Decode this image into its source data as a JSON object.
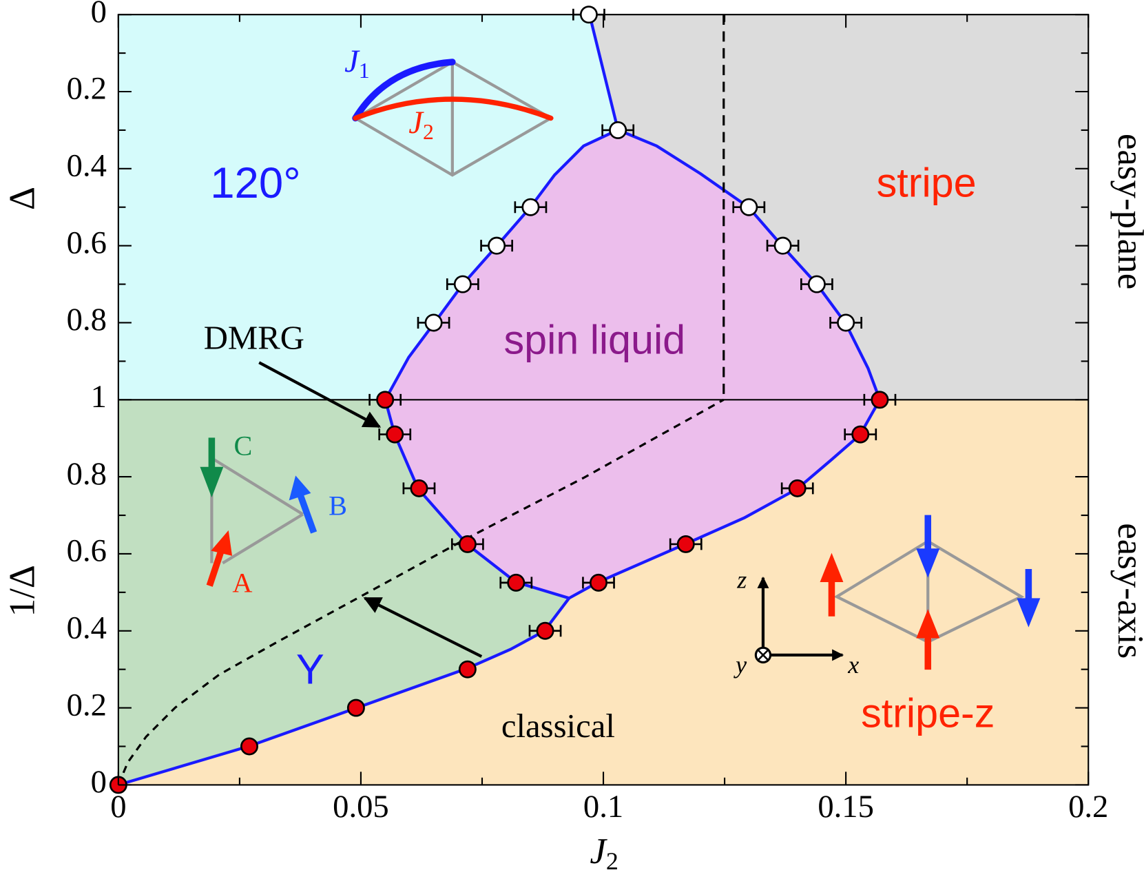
{
  "chart_data": {
    "type": "scatter",
    "xlabel": {
      "text": "J",
      "sub": "2"
    },
    "xlim": [
      0,
      0.2
    ],
    "xticks": [
      0,
      0.05,
      0.1,
      0.15,
      0.2
    ],
    "panels": [
      {
        "ylabel": "Δ",
        "side_label": "easy-plane",
        "ylim": [
          1,
          0
        ],
        "yticks": [
          0,
          0.2,
          0.4,
          0.6,
          0.8,
          1
        ],
        "series": [
          {
            "marker": "open",
            "color": "#ffffff",
            "x": [
              0.097,
              0.103,
              0.085,
              0.078,
              0.071,
              0.065,
              0.13,
              0.137,
              0.144,
              0.15
            ],
            "values": [
              0,
              0.3,
              0.5,
              0.6,
              0.7,
              0.8,
              0.5,
              0.6,
              0.7,
              0.8
            ],
            "errors": [
              0.002,
              0.002,
              0.002,
              0.002,
              0.002,
              0.002,
              0.002,
              0.002,
              0.002,
              0.002
            ]
          }
        ]
      },
      {
        "ylabel": "1/Δ",
        "side_label": "easy-axis",
        "ylim": [
          0,
          1
        ],
        "yticks": [
          0,
          0.2,
          0.4,
          0.6,
          0.8
        ],
        "series": [
          {
            "marker": "filled",
            "color": "#e8000b",
            "x": [
              0.055,
              0.157,
              0.057,
              0.153,
              0.062,
              0.14,
              0.072,
              0.117,
              0.082,
              0.099,
              0.088,
              0.072,
              0.049,
              0.027,
              0
            ],
            "values": [
              1,
              1,
              0.91,
              0.91,
              0.77,
              0.77,
              0.625,
              0.625,
              0.525,
              0.525,
              0.4,
              0.3,
              0.2,
              0.1,
              0
            ],
            "errors": [
              0.002,
              0.002,
              0.002,
              0.002,
              0.002,
              0.002,
              0.002,
              0.002,
              0.002,
              0.002,
              0.002,
              null,
              null,
              null,
              null
            ]
          }
        ]
      }
    ],
    "phase_labels": [
      {
        "text": "120°",
        "color": "#1a1aff"
      },
      {
        "text": "stripe",
        "color": "#ff2200"
      },
      {
        "text": "spin liquid",
        "color": "#8b1a8b"
      },
      {
        "text": "Y",
        "color": "#1a1aff"
      },
      {
        "text": "stripe-z",
        "color": "#ff2200"
      }
    ],
    "arrow_labels": [
      "DMRG",
      "classical"
    ],
    "bond_labels": [
      {
        "text": "J",
        "sub": "1"
      },
      {
        "text": "J",
        "sub": "2"
      }
    ],
    "sublattice_labels": [
      "A",
      "B",
      "C"
    ],
    "frame_labels": [
      "x",
      "y",
      "z"
    ]
  }
}
